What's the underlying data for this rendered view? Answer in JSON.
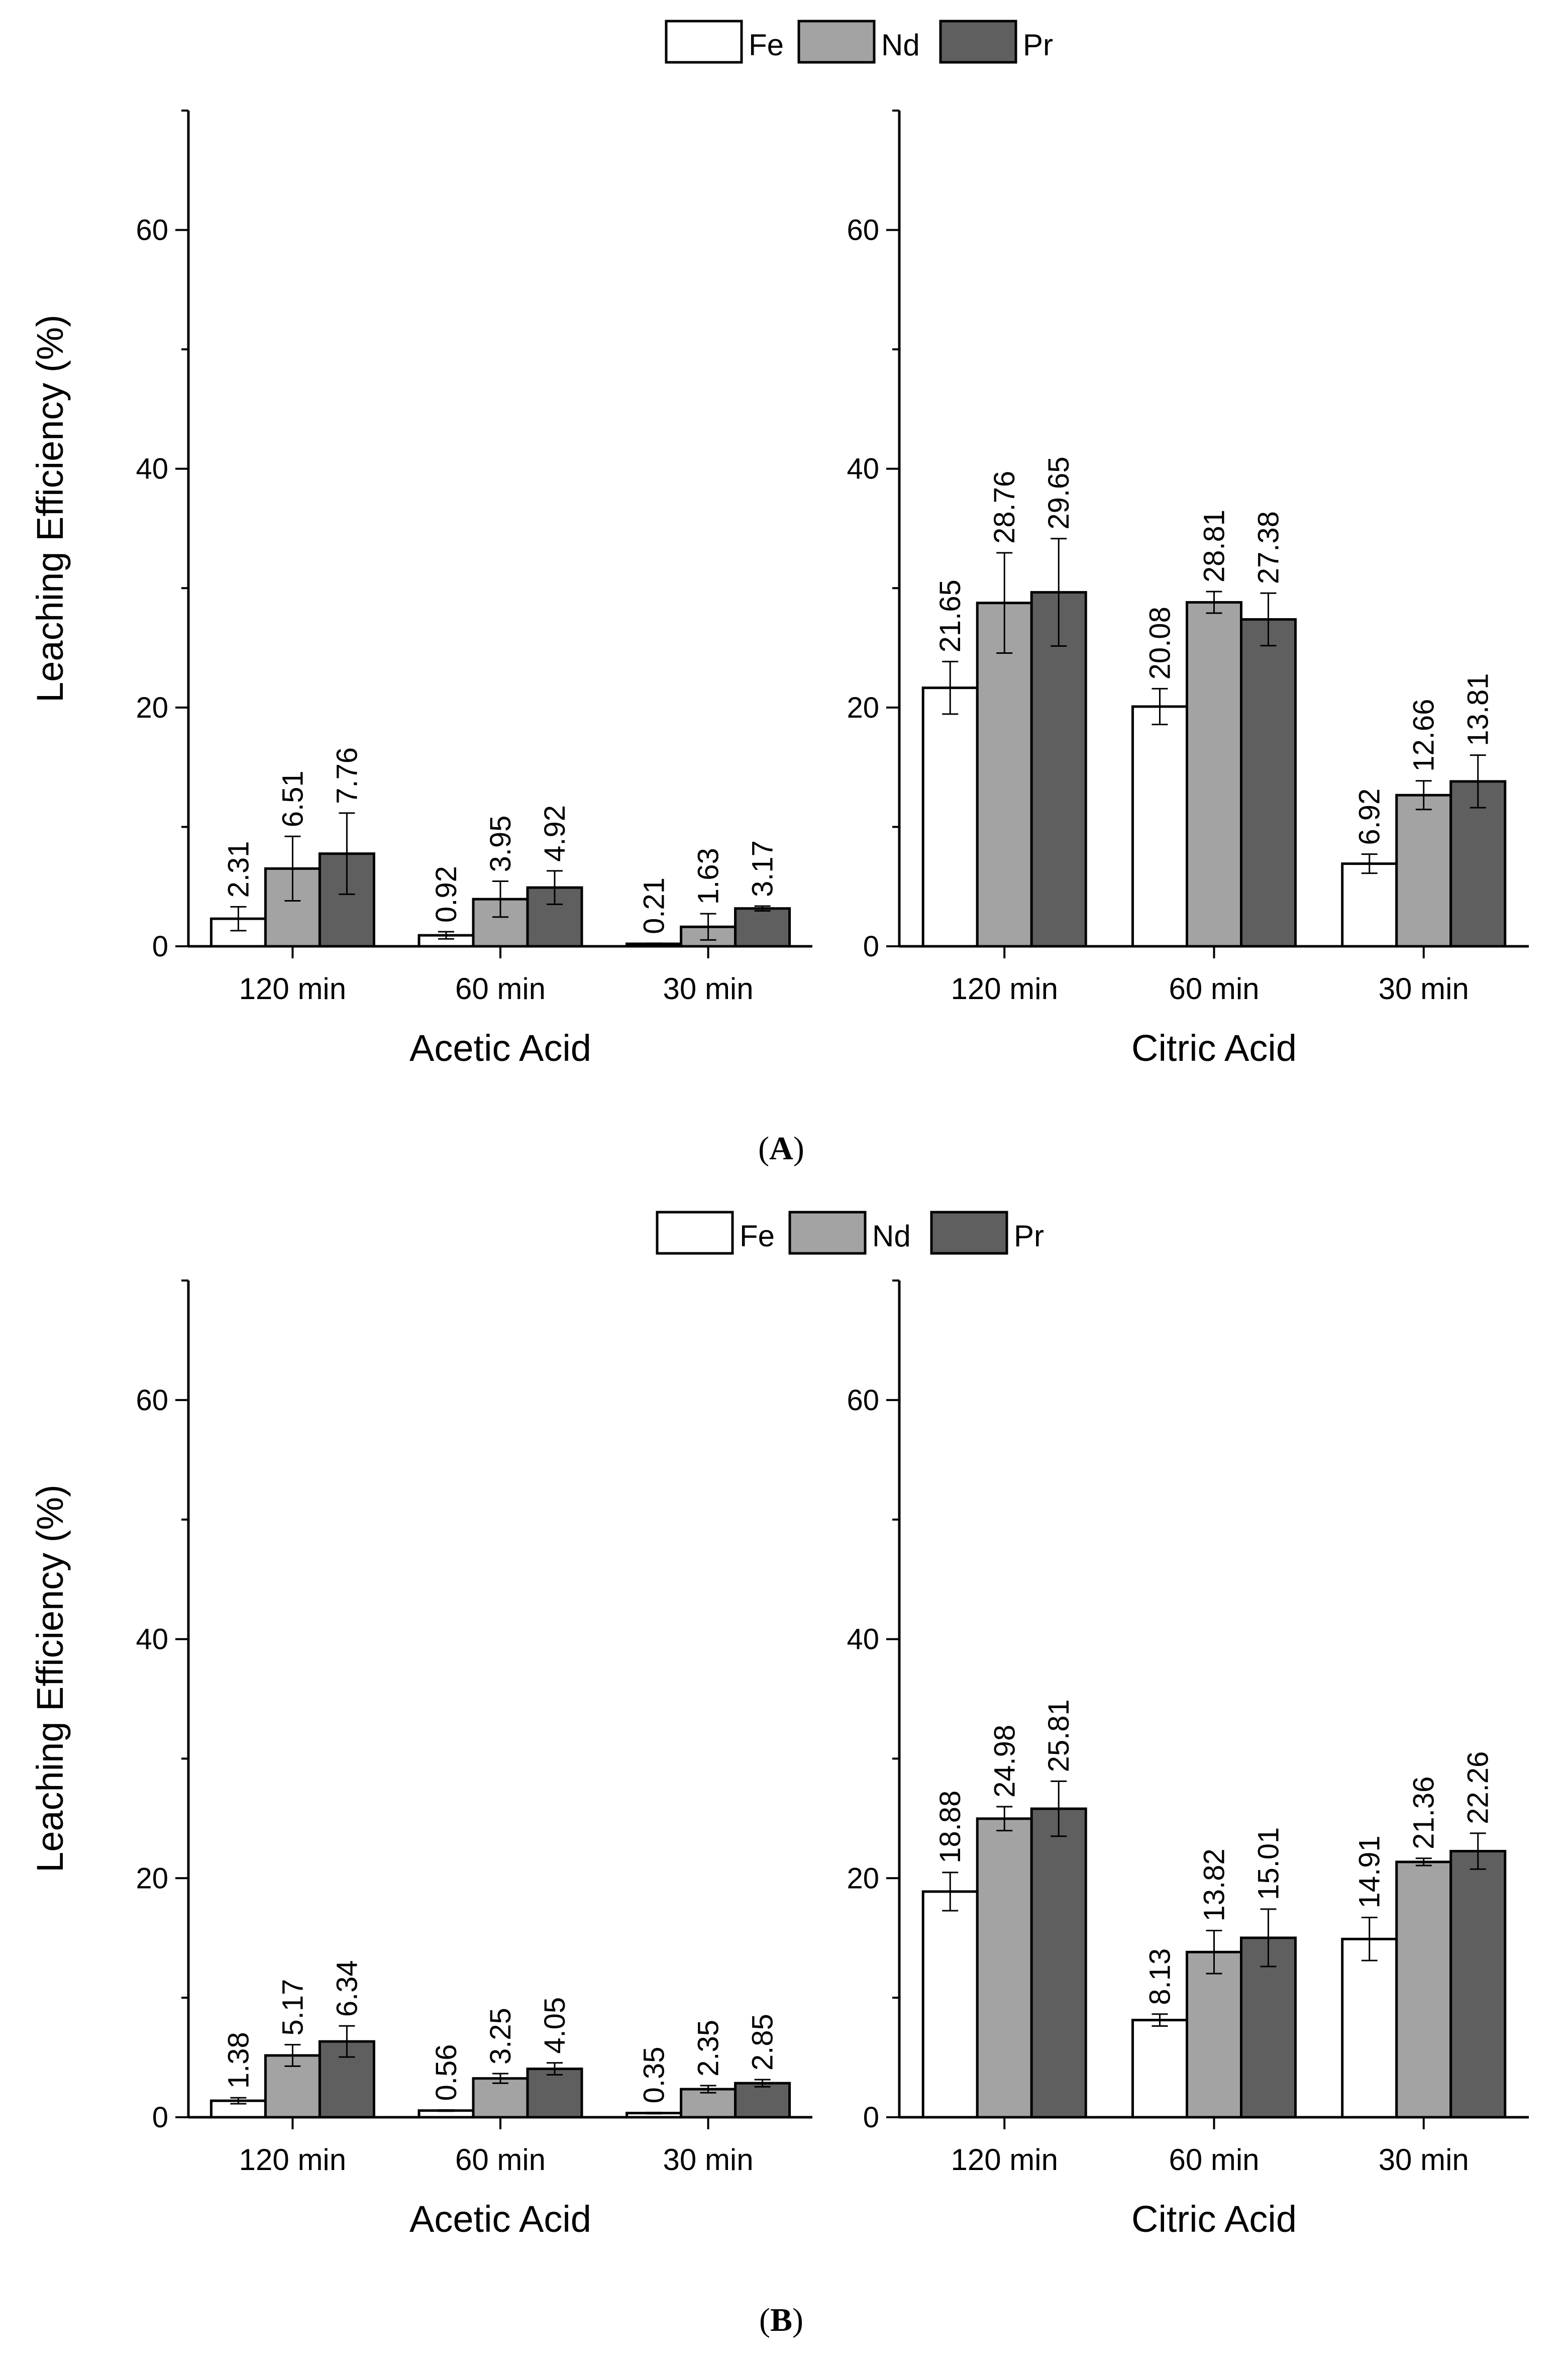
{
  "figure": {
    "panels": [
      {
        "caption_open": "(",
        "caption_letter": "A",
        "caption_close": ")"
      },
      {
        "caption_open": "(",
        "caption_letter": "B",
        "caption_close": ")"
      }
    ]
  },
  "chart_data": [
    {
      "type": "bar",
      "panel": "A",
      "title": "Acetic Acid",
      "xlabel": "Acetic Acid",
      "ylabel": "Leaching Efficiency (%)",
      "categories": [
        "120 min",
        "60 min",
        "30 min"
      ],
      "ylim": [
        0,
        70
      ],
      "yticks": [
        0,
        20,
        40,
        60
      ],
      "legend": [
        "Fe",
        "Nd",
        "Pr"
      ],
      "series": [
        {
          "name": "Fe",
          "color": "#ffffff",
          "values": [
            2.31,
            0.92,
            0.21
          ],
          "errors": [
            1.0,
            0.3,
            0.05
          ],
          "labels": [
            "2.31",
            "0.92",
            "0.21"
          ]
        },
        {
          "name": "Nd",
          "color": "#a3a3a3",
          "values": [
            6.51,
            3.95,
            1.63
          ],
          "errors": [
            2.7,
            1.5,
            1.1
          ],
          "labels": [
            "6.51",
            "3.95",
            "1.63"
          ]
        },
        {
          "name": "Pr",
          "color": "#5f5f5f",
          "values": [
            7.76,
            4.92,
            3.17
          ],
          "errors": [
            3.4,
            1.4,
            0.2
          ],
          "labels": [
            "7.76",
            "4.92",
            "3.17"
          ]
        }
      ]
    },
    {
      "type": "bar",
      "panel": "A",
      "title": "Citric Acid",
      "xlabel": "Citric Acid",
      "ylabel": "",
      "categories": [
        "120 min",
        "60 min",
        "30 min"
      ],
      "ylim": [
        0,
        70
      ],
      "yticks": [
        0,
        20,
        40,
        60
      ],
      "series": [
        {
          "name": "Fe",
          "color": "#ffffff",
          "values": [
            21.65,
            20.08,
            6.92
          ],
          "errors": [
            2.2,
            1.5,
            0.8
          ],
          "labels": [
            "21.65",
            "20.08",
            "6.92"
          ]
        },
        {
          "name": "Nd",
          "color": "#a3a3a3",
          "values": [
            28.76,
            28.81,
            12.66
          ],
          "errors": [
            4.2,
            0.9,
            1.2
          ],
          "labels": [
            "28.76",
            "28.81",
            "12.66"
          ]
        },
        {
          "name": "Pr",
          "color": "#5f5f5f",
          "values": [
            29.65,
            27.38,
            13.81
          ],
          "errors": [
            4.5,
            2.2,
            2.2
          ],
          "labels": [
            "29.65",
            "27.38",
            "13.81"
          ]
        }
      ]
    },
    {
      "type": "bar",
      "panel": "B",
      "title": "Acetic Acid",
      "xlabel": "Acetic Acid",
      "ylabel": "Leaching Efficiency (%)",
      "categories": [
        "120 min",
        "60 min",
        "30 min"
      ],
      "ylim": [
        0,
        70
      ],
      "yticks": [
        0,
        20,
        40,
        60
      ],
      "legend": [
        "Fe",
        "Nd",
        "Pr"
      ],
      "series": [
        {
          "name": "Fe",
          "color": "#ffffff",
          "values": [
            1.38,
            0.56,
            0.35
          ],
          "errors": [
            0.25,
            0.05,
            0.05
          ],
          "labels": [
            "1.38",
            "0.56",
            "0.35"
          ]
        },
        {
          "name": "Nd",
          "color": "#a3a3a3",
          "values": [
            5.17,
            3.25,
            2.35
          ],
          "errors": [
            0.9,
            0.4,
            0.3
          ],
          "labels": [
            "5.17",
            "3.25",
            "2.35"
          ]
        },
        {
          "name": "Pr",
          "color": "#5f5f5f",
          "values": [
            6.34,
            4.05,
            2.85
          ],
          "errors": [
            1.3,
            0.5,
            0.3
          ],
          "labels": [
            "6.34",
            "4.05",
            "2.85"
          ]
        }
      ]
    },
    {
      "type": "bar",
      "panel": "B",
      "title": "Citric Acid",
      "xlabel": "Citric Acid",
      "ylabel": "",
      "categories": [
        "120 min",
        "60 min",
        "30 min"
      ],
      "ylim": [
        0,
        70
      ],
      "yticks": [
        0,
        20,
        40,
        60
      ],
      "series": [
        {
          "name": "Fe",
          "color": "#ffffff",
          "values": [
            18.88,
            8.13,
            14.91
          ],
          "errors": [
            1.6,
            0.5,
            1.8
          ],
          "labels": [
            "18.88",
            "8.13",
            "14.91"
          ]
        },
        {
          "name": "Nd",
          "color": "#a3a3a3",
          "values": [
            24.98,
            13.82,
            21.36
          ],
          "errors": [
            1.0,
            1.8,
            0.3
          ],
          "labels": [
            "24.98",
            "13.82",
            "21.36"
          ]
        },
        {
          "name": "Pr",
          "color": "#5f5f5f",
          "values": [
            25.81,
            15.01,
            22.26
          ],
          "errors": [
            2.3,
            2.4,
            1.5
          ],
          "labels": [
            "25.81",
            "15.01",
            "22.26"
          ]
        }
      ]
    }
  ]
}
